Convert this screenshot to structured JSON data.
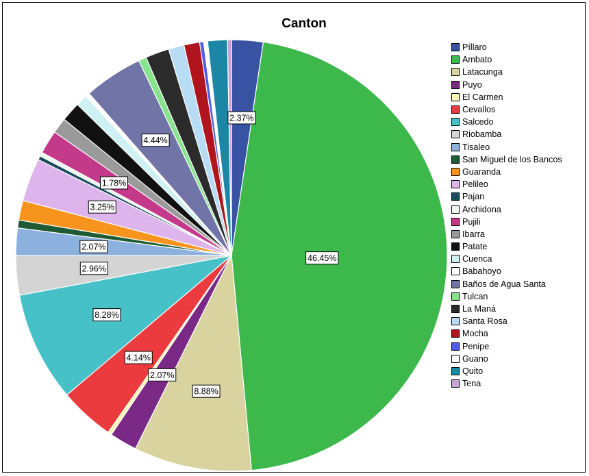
{
  "chart_data": {
    "type": "pie",
    "title": "Canton",
    "legend_position": "right",
    "slices": [
      {
        "name": "Píllaro",
        "value": 2.37,
        "color": "#3953a4",
        "label": "2.37%"
      },
      {
        "name": "Ambato",
        "value": 46.45,
        "color": "#3cb94a",
        "label": "46.45%"
      },
      {
        "name": "Latacunga",
        "value": 8.88,
        "color": "#d9d3a0",
        "label": "8.88%"
      },
      {
        "name": "Puyo",
        "value": 2.07,
        "color": "#7a2a86",
        "label": "2.07%"
      },
      {
        "name": "El Carmen",
        "value": 0.3,
        "color": "#fcf7b6",
        "label": ""
      },
      {
        "name": "Cevallos",
        "value": 4.14,
        "color": "#ec3b3e",
        "label": "4.14%"
      },
      {
        "name": "Salcedo",
        "value": 8.28,
        "color": "#47c1c8",
        "label": "8.28%"
      },
      {
        "name": "Riobamba",
        "value": 2.96,
        "color": "#d4d4d4",
        "label": "2.96%"
      },
      {
        "name": "Tisaleo",
        "value": 2.07,
        "color": "#8db1de",
        "label": "2.07%"
      },
      {
        "name": "San Miguel de los Bancos",
        "value": 0.59,
        "color": "#1e5a34",
        "label": ""
      },
      {
        "name": "Guaranda",
        "value": 1.48,
        "color": "#f7941d",
        "label": ""
      },
      {
        "name": "Pelileo",
        "value": 3.25,
        "color": "#ddb4ec",
        "label": "3.25%"
      },
      {
        "name": "Pajan",
        "value": 0.3,
        "color": "#1a4e5e",
        "label": ""
      },
      {
        "name": "Archidona",
        "value": 0.3,
        "color": "#eaf7ea",
        "label": ""
      },
      {
        "name": "Pujili",
        "value": 1.78,
        "color": "#c43a8a",
        "label": "1.78%"
      },
      {
        "name": "Ibarra",
        "value": 1.18,
        "color": "#9a9a9a",
        "label": ""
      },
      {
        "name": "Patate",
        "value": 1.48,
        "color": "#111111",
        "label": ""
      },
      {
        "name": "Cuenca",
        "value": 0.89,
        "color": "#cff1f3",
        "label": ""
      },
      {
        "name": "Babahoyo",
        "value": 0.3,
        "color": "#ffffff",
        "label": ""
      },
      {
        "name": "Baños de Agua Santa",
        "value": 4.44,
        "color": "#7174a6",
        "label": "4.44%"
      },
      {
        "name": "Tulcan",
        "value": 0.59,
        "color": "#88e38f",
        "label": ""
      },
      {
        "name": "La Maná",
        "value": 1.78,
        "color": "#2b2b2b",
        "label": ""
      },
      {
        "name": "Santa Rosa",
        "value": 1.18,
        "color": "#b9dcf5",
        "label": ""
      },
      {
        "name": "Mocha",
        "value": 1.18,
        "color": "#b0141d",
        "label": ""
      },
      {
        "name": "Penipe",
        "value": 0.3,
        "color": "#4f5de8",
        "label": ""
      },
      {
        "name": "Guano",
        "value": 0.3,
        "color": "#ffffff",
        "label": ""
      },
      {
        "name": "Quito",
        "value": 1.48,
        "color": "#1c87a5",
        "label": ""
      },
      {
        "name": "Tena",
        "value": 0.3,
        "color": "#c9a3d4",
        "label": ""
      }
    ]
  }
}
